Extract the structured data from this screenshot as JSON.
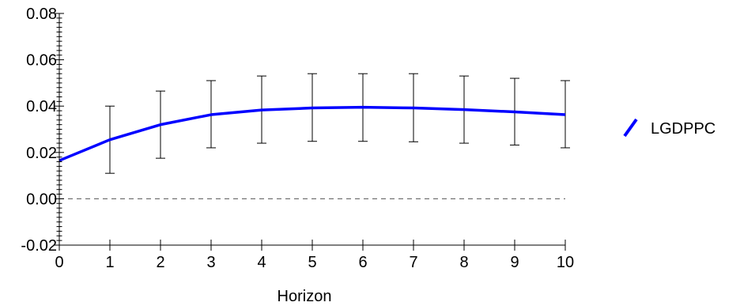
{
  "chart_data": {
    "type": "line",
    "title": "",
    "xlabel": "Horizon",
    "ylabel": "",
    "x": [
      0,
      1,
      2,
      3,
      4,
      5,
      6,
      7,
      8,
      9,
      10
    ],
    "xlim": [
      0,
      10
    ],
    "ylim": [
      -0.02,
      0.08
    ],
    "x_ticks": [
      "0",
      "1",
      "2",
      "3",
      "4",
      "5",
      "6",
      "7",
      "8",
      "9",
      "10"
    ],
    "y_ticks": [
      "-0.02",
      "0.00",
      "0.02",
      "0.04",
      "0.06",
      "0.08"
    ],
    "grid": false,
    "reference_line": 0.0,
    "legend_position": "right",
    "series": [
      {
        "name": "LGDPPC",
        "color": "#0000ff",
        "values": [
          0.0165,
          0.0255,
          0.032,
          0.0363,
          0.0383,
          0.0392,
          0.0395,
          0.0392,
          0.0385,
          0.0375,
          0.0363
        ],
        "error_low": [
          null,
          0.011,
          0.0175,
          0.022,
          0.024,
          0.0248,
          0.0248,
          0.0246,
          0.024,
          0.0232,
          0.022
        ],
        "error_high": [
          null,
          0.04,
          0.0465,
          0.051,
          0.053,
          0.054,
          0.054,
          0.054,
          0.053,
          0.052,
          0.051
        ]
      }
    ]
  }
}
